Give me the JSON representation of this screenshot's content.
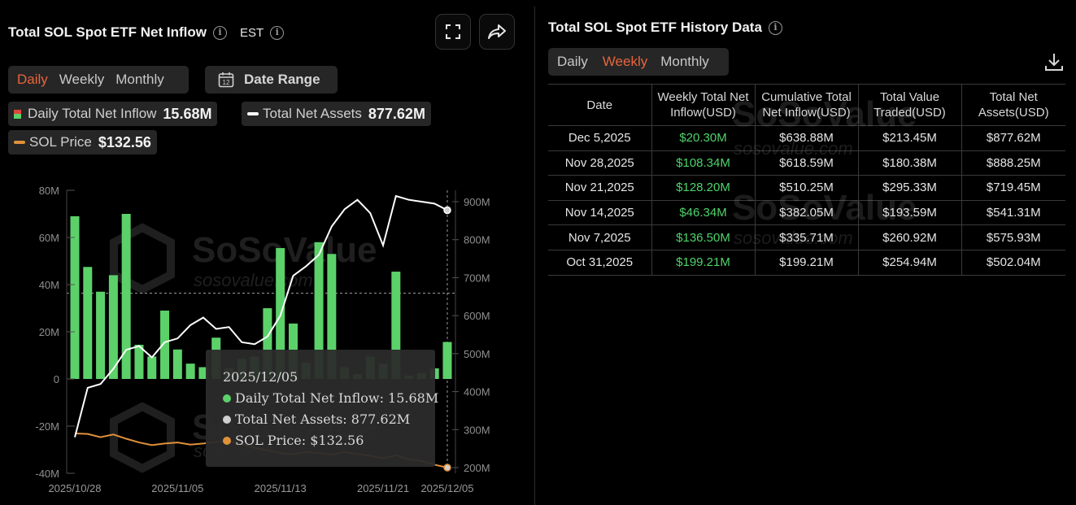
{
  "left": {
    "title": "Total SOL Spot ETF Net Inflow",
    "timezone": "EST",
    "tabs": [
      "Daily",
      "Weekly",
      "Monthly"
    ],
    "active_tab": 0,
    "date_range_label": "Date Range",
    "calendar_day": "12",
    "legend": {
      "inflow_label": "Daily Total Net Inflow",
      "inflow_value": "15.68M",
      "assets_label": "Total Net Assets",
      "assets_value": "877.62M",
      "price_label": "SOL Price",
      "price_value": "$132.56"
    },
    "watermark": {
      "brand": "SoSoValue",
      "domain": "sosovalue.com"
    }
  },
  "colors": {
    "accent": "#e8643c",
    "bar_green": "#5cd16a",
    "bar_red": "#e0473d",
    "assets_line": "#ffffff",
    "price_line": "#e0913a",
    "tooltip_bg": "#2b2b2b"
  },
  "chart_data": {
    "type": "bar",
    "x_tick_labels": [
      "2025/10/28",
      "2025/11/05",
      "2025/11/13",
      "2025/11/21",
      "2025/12/05"
    ],
    "y_left_ticks": [
      "80M",
      "60M",
      "40M",
      "20M",
      "0",
      "-20M",
      "-40M"
    ],
    "y_right_ticks": [
      "900M",
      "800M",
      "700M",
      "600M",
      "500M",
      "400M",
      "300M",
      "200M"
    ],
    "y_left_range": [
      -40,
      80
    ],
    "y_right_range": [
      200,
      900
    ],
    "series": [
      {
        "name": "Daily Total Net Inflow",
        "kind": "bar",
        "axis": "left",
        "values": [
          69,
          47.5,
          37,
          44,
          70,
          14.5,
          9.5,
          29,
          12.5,
          6.5,
          5,
          17.5,
          4.5,
          8.5,
          9.5,
          30,
          55.5,
          23.5,
          7,
          58,
          53,
          5,
          2,
          9.5,
          6.5,
          45.5,
          1.5,
          2.5,
          4.5,
          15.68
        ]
      },
      {
        "name": "Total Net Assets",
        "kind": "line",
        "axis": "right",
        "values": [
          280,
          410,
          420,
          460,
          510,
          520,
          490,
          530,
          540,
          575,
          595,
          565,
          570,
          530,
          525,
          545,
          600,
          705,
          730,
          760,
          835,
          880,
          905,
          870,
          785,
          915,
          905,
          900,
          895,
          877.62
        ]
      },
      {
        "name": "SOL Price",
        "kind": "line",
        "axis": "hidden",
        "values": [
          197,
          196,
          190,
          195,
          187,
          180,
          175,
          178,
          180,
          176,
          178,
          181,
          182,
          177,
          170,
          165,
          160,
          158,
          162,
          160,
          157,
          162,
          158,
          155,
          150,
          156,
          148,
          145,
          138,
          132.56
        ]
      }
    ],
    "tooltip": {
      "date": "2025/12/05",
      "lines": [
        "Daily Total Net Inflow: 15.68M",
        "Total Net Assets: 877.62M",
        "SOL Price: $132.56"
      ]
    }
  },
  "right": {
    "title": "Total SOL Spot ETF History Data",
    "tabs": [
      "Daily",
      "Weekly",
      "Monthly"
    ],
    "active_tab": 1,
    "table": {
      "headers": [
        "Date",
        "Weekly Total Net Inflow(USD)",
        "Cumulative Total Net Inflow(USD)",
        "Total Value Traded(USD)",
        "Total Net Assets(USD)"
      ],
      "rows": [
        [
          "Dec 5,2025",
          "$20.30M",
          "$638.88M",
          "$213.45M",
          "$877.62M"
        ],
        [
          "Nov 28,2025",
          "$108.34M",
          "$618.59M",
          "$180.38M",
          "$888.25M"
        ],
        [
          "Nov 21,2025",
          "$128.20M",
          "$510.25M",
          "$295.33M",
          "$719.45M"
        ],
        [
          "Nov 14,2025",
          "$46.34M",
          "$382.05M",
          "$193.59M",
          "$541.31M"
        ],
        [
          "Nov 7,2025",
          "$136.50M",
          "$335.71M",
          "$260.92M",
          "$575.93M"
        ],
        [
          "Oct 31,2025",
          "$199.21M",
          "$199.21M",
          "$254.94M",
          "$502.04M"
        ]
      ]
    }
  }
}
